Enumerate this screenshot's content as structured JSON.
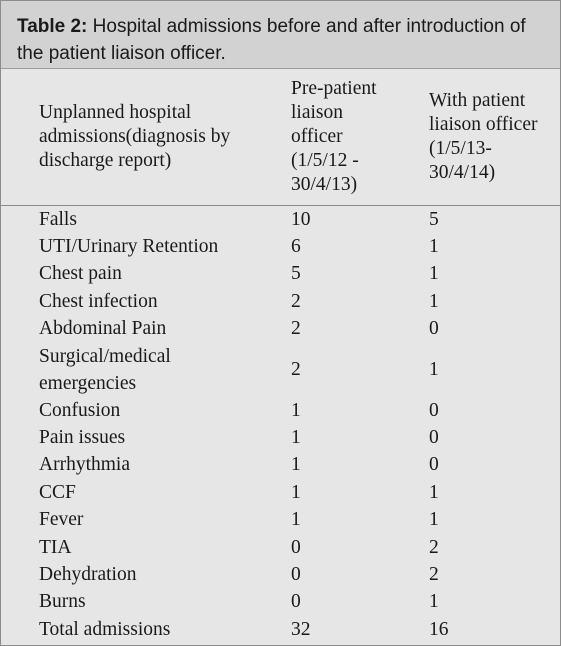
{
  "caption": {
    "label": "Table 2:",
    "line1": " Hospital admissions before and after introduction of",
    "line2": "the patient liaison officer."
  },
  "table": {
    "headers": [
      [
        "Unplanned hospital",
        "admissions(diagnosis by",
        "discharge report)"
      ],
      [
        "Pre-patient",
        "liaison",
        "officer",
        "(1/5/12 -",
        "30/4/13)"
      ],
      [
        "With patient",
        "liaison officer",
        "(1/5/13-",
        "30/4/14)"
      ]
    ],
    "rows": [
      {
        "label": [
          "Falls"
        ],
        "pre": "10",
        "with": "5"
      },
      {
        "label": [
          "UTI/Urinary Retention"
        ],
        "pre": "6",
        "with": "1"
      },
      {
        "label": [
          "Chest pain"
        ],
        "pre": "5",
        "with": "1"
      },
      {
        "label": [
          "Chest infection"
        ],
        "pre": "2",
        "with": "1"
      },
      {
        "label": [
          "Abdominal Pain"
        ],
        "pre": "2",
        "with": "0"
      },
      {
        "label": [
          "Surgical/medical",
          "emergencies"
        ],
        "pre": "2",
        "with": "1"
      },
      {
        "label": [
          "Confusion"
        ],
        "pre": "1",
        "with": "0"
      },
      {
        "label": [
          "Pain issues"
        ],
        "pre": "1",
        "with": "0"
      },
      {
        "label": [
          "Arrhythmia"
        ],
        "pre": "1",
        "with": "0"
      },
      {
        "label": [
          "CCF"
        ],
        "pre": "1",
        "with": "1"
      },
      {
        "label": [
          "Fever"
        ],
        "pre": "1",
        "with": "1"
      },
      {
        "label": [
          "TIA"
        ],
        "pre": "0",
        "with": "2"
      },
      {
        "label": [
          "Dehydration"
        ],
        "pre": "0",
        "with": "2"
      },
      {
        "label": [
          "Burns"
        ],
        "pre": "0",
        "with": "1"
      },
      {
        "label": [
          "Total admissions"
        ],
        "pre": "32",
        "with": "16"
      }
    ]
  },
  "colors": {
    "caption_bg": "#d2d2d2",
    "table_bg": "#e6e6e6",
    "rule": "#8c8c8c"
  }
}
